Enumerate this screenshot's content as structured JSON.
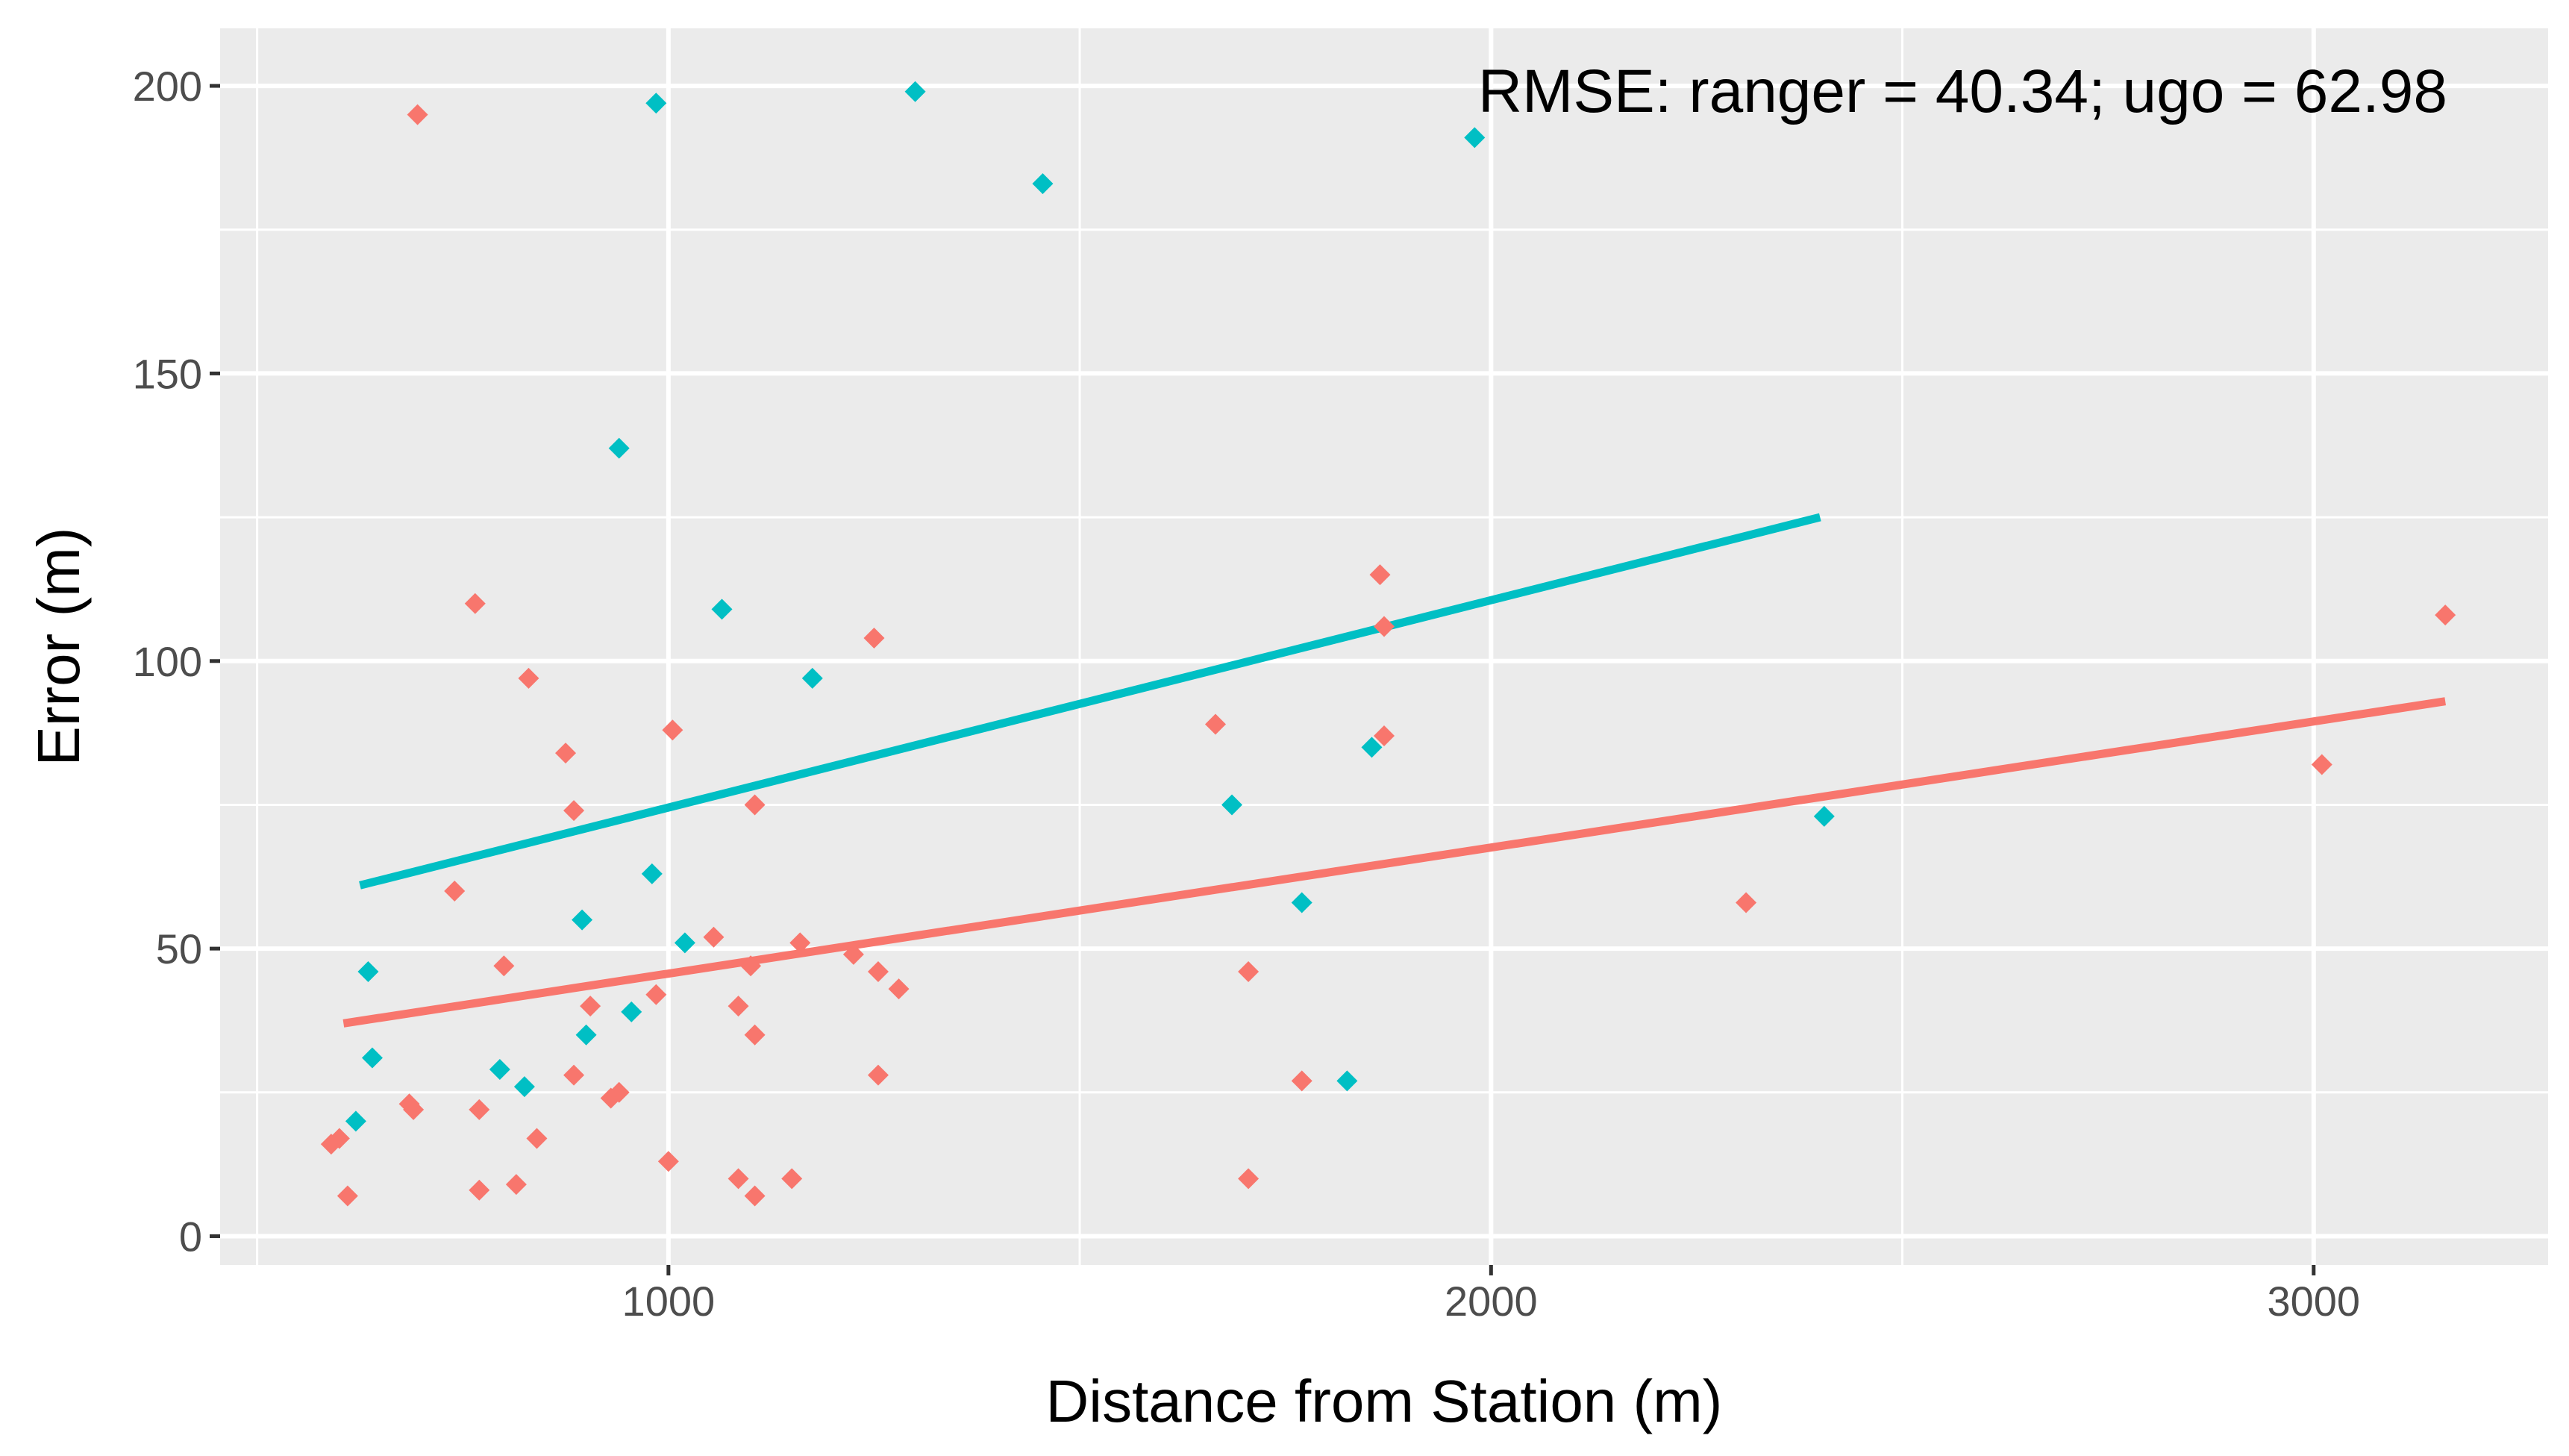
{
  "chart_data": {
    "type": "scatter",
    "title": "",
    "xlabel": "Distance from Station (m)",
    "ylabel": "Error (m)",
    "xlim": [
      455,
      3285
    ],
    "ylim": [
      -5,
      210
    ],
    "x_ticks": [
      1000,
      2000,
      3000
    ],
    "x_tick_labels": [
      "1000",
      "2000",
      "3000"
    ],
    "y_ticks": [
      0,
      50,
      100,
      150,
      200
    ],
    "y_tick_labels": [
      "0",
      "50",
      "100",
      "150",
      "200"
    ],
    "grid": true,
    "legend": "none",
    "annotation": "RMSE: ranger = 40.34; ugo = 62.98",
    "series": [
      {
        "name": "ranger",
        "color": "#F8766D",
        "points": [
          [
            590,
            16
          ],
          [
            600,
            17
          ],
          [
            610,
            7
          ],
          [
            685,
            23
          ],
          [
            690,
            22
          ],
          [
            695,
            195
          ],
          [
            740,
            60
          ],
          [
            765,
            110
          ],
          [
            770,
            22
          ],
          [
            770,
            8
          ],
          [
            800,
            47
          ],
          [
            815,
            9
          ],
          [
            830,
            97
          ],
          [
            840,
            17
          ],
          [
            875,
            84
          ],
          [
            885,
            28
          ],
          [
            885,
            74
          ],
          [
            905,
            40
          ],
          [
            930,
            24
          ],
          [
            940,
            25
          ],
          [
            985,
            42
          ],
          [
            1000,
            13
          ],
          [
            1005,
            88
          ],
          [
            1055,
            52
          ],
          [
            1085,
            40
          ],
          [
            1085,
            10
          ],
          [
            1100,
            47
          ],
          [
            1105,
            35
          ],
          [
            1105,
            7
          ],
          [
            1105,
            75
          ],
          [
            1150,
            10
          ],
          [
            1160,
            51
          ],
          [
            1225,
            49
          ],
          [
            1250,
            104
          ],
          [
            1255,
            46
          ],
          [
            1255,
            28
          ],
          [
            1280,
            43
          ],
          [
            1665,
            89
          ],
          [
            1705,
            46
          ],
          [
            1705,
            10
          ],
          [
            1770,
            27
          ],
          [
            1865,
            115
          ],
          [
            1870,
            106
          ],
          [
            1870,
            87
          ],
          [
            2310,
            58
          ],
          [
            3010,
            82
          ],
          [
            3160,
            108
          ]
        ],
        "trend": {
          "x": [
            605,
            3160
          ],
          "y": [
            37,
            93
          ]
        }
      },
      {
        "name": "ugo",
        "color": "#00BFC4",
        "points": [
          [
            620,
            20
          ],
          [
            635,
            46
          ],
          [
            640,
            31
          ],
          [
            795,
            29
          ],
          [
            825,
            26
          ],
          [
            895,
            55
          ],
          [
            900,
            35
          ],
          [
            940,
            137
          ],
          [
            955,
            39
          ],
          [
            980,
            63
          ],
          [
            985,
            197
          ],
          [
            1020,
            51
          ],
          [
            1065,
            109
          ],
          [
            1175,
            97
          ],
          [
            1300,
            199
          ],
          [
            1455,
            183
          ],
          [
            1685,
            75
          ],
          [
            1770,
            58
          ],
          [
            1825,
            27
          ],
          [
            1855,
            85
          ],
          [
            1980,
            191
          ],
          [
            2405,
            73
          ]
        ],
        "trend": {
          "x": [
            625,
            2400
          ],
          "y": [
            61,
            125
          ]
        }
      }
    ]
  }
}
